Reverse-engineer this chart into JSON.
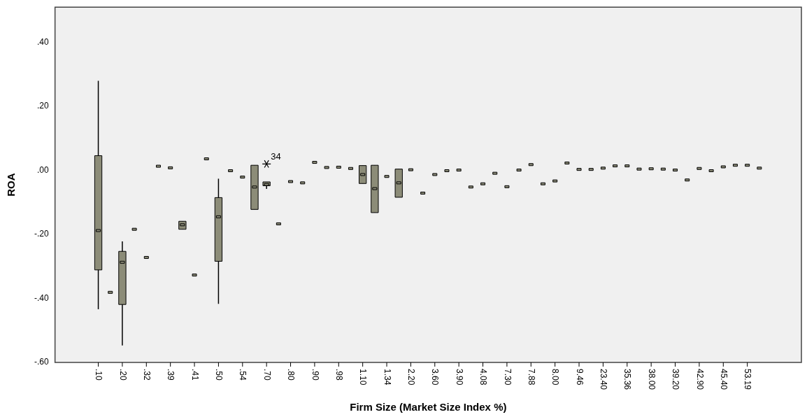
{
  "chart_data": {
    "type": "box",
    "xlabel": "Firm Size (Market Size Index %)",
    "ylabel": "ROA",
    "categories": [
      ".10",
      null,
      ".20",
      null,
      ".32",
      null,
      ".39",
      null,
      ".41",
      null,
      ".50",
      null,
      ".54",
      null,
      ".70",
      null,
      ".80",
      null,
      ".90",
      null,
      ".98",
      null,
      "1.10",
      null,
      "1.34",
      null,
      "2.20",
      null,
      "3.60",
      null,
      "3.90",
      null,
      "4.08",
      null,
      "7.30",
      null,
      "7.88",
      null,
      "8.00",
      null,
      "9.46",
      null,
      "23.40",
      null,
      "35.36",
      null,
      "38.00",
      null,
      "39.20",
      null,
      "42.90",
      null,
      "45.40",
      null,
      "53.19",
      null
    ],
    "color": "#8c8c78",
    "marker": "star",
    "boxes": [
      {
        "low": -0.434,
        "q1": -0.311,
        "median": -0.188,
        "q3": 0.046,
        "high": 0.28
      },
      {
        "low": -0.381,
        "q1": -0.381,
        "median": -0.381,
        "q3": -0.381,
        "high": -0.381
      },
      {
        "low": -0.547,
        "q1": -0.419,
        "median": -0.287,
        "q3": -0.253,
        "high": -0.222
      },
      {
        "low": -0.184,
        "q1": -0.184,
        "median": -0.184,
        "q3": -0.184,
        "high": -0.184
      },
      {
        "low": -0.272,
        "q1": -0.272,
        "median": -0.272,
        "q3": -0.272,
        "high": -0.272
      },
      {
        "low": 0.013,
        "q1": 0.013,
        "median": 0.013,
        "q3": 0.013,
        "high": 0.013
      },
      {
        "low": 0.008,
        "q1": 0.008,
        "median": 0.008,
        "q3": 0.008,
        "high": 0.008
      },
      {
        "low": -0.184,
        "q1": -0.184,
        "median": -0.17,
        "q3": -0.159,
        "high": -0.159
      },
      {
        "low": -0.327,
        "q1": -0.327,
        "median": -0.327,
        "q3": -0.327,
        "high": -0.327
      },
      {
        "low": 0.036,
        "q1": 0.036,
        "median": 0.036,
        "q3": 0.036,
        "high": 0.036
      },
      {
        "low": -0.417,
        "q1": -0.284,
        "median": -0.145,
        "q3": -0.085,
        "high": -0.026
      },
      {
        "low": -0.001,
        "q1": -0.001,
        "median": -0.001,
        "q3": -0.001,
        "high": -0.001
      },
      {
        "low": -0.021,
        "q1": -0.021,
        "median": -0.021,
        "q3": -0.021,
        "high": -0.021
      },
      {
        "low": -0.122,
        "q1": -0.122,
        "median": -0.052,
        "q3": 0.016,
        "high": 0.016
      },
      {
        "low": -0.058,
        "q1": -0.048,
        "median": -0.044,
        "q3": -0.036,
        "high": -0.036,
        "outliers": [
          0.02
        ]
      },
      {
        "low": -0.167,
        "q1": -0.167,
        "median": -0.167,
        "q3": -0.167,
        "high": -0.167
      },
      {
        "low": -0.035,
        "q1": -0.035,
        "median": -0.035,
        "q3": -0.035,
        "high": -0.035
      },
      {
        "low": -0.039,
        "q1": -0.039,
        "median": -0.039,
        "q3": -0.039,
        "high": -0.039
      },
      {
        "low": 0.025,
        "q1": 0.025,
        "median": 0.025,
        "q3": 0.025,
        "high": 0.025
      },
      {
        "low": 0.009,
        "q1": 0.009,
        "median": 0.009,
        "q3": 0.009,
        "high": 0.009
      },
      {
        "low": 0.01,
        "q1": 0.01,
        "median": 0.01,
        "q3": 0.01,
        "high": 0.01
      },
      {
        "low": 0.006,
        "q1": 0.006,
        "median": 0.006,
        "q3": 0.006,
        "high": 0.006
      },
      {
        "low": -0.041,
        "q1": -0.041,
        "median": -0.013,
        "q3": 0.015,
        "high": 0.015
      },
      {
        "low": -0.132,
        "q1": -0.132,
        "median": -0.057,
        "q3": 0.016,
        "high": 0.016
      },
      {
        "low": -0.019,
        "q1": -0.019,
        "median": -0.019,
        "q3": -0.019,
        "high": -0.019
      },
      {
        "low": -0.084,
        "q1": -0.084,
        "median": -0.039,
        "q3": 0.004,
        "high": 0.004
      },
      {
        "low": 0.002,
        "q1": 0.002,
        "median": 0.002,
        "q3": 0.002,
        "high": 0.002
      },
      {
        "low": -0.071,
        "q1": -0.071,
        "median": -0.071,
        "q3": -0.071,
        "high": -0.071
      },
      {
        "low": -0.013,
        "q1": -0.013,
        "median": -0.013,
        "q3": -0.013,
        "high": -0.013
      },
      {
        "low": -0.001,
        "q1": -0.001,
        "median": -0.001,
        "q3": -0.001,
        "high": -0.001
      },
      {
        "low": 0.001,
        "q1": 0.001,
        "median": 0.001,
        "q3": 0.001,
        "high": 0.001
      },
      {
        "low": -0.052,
        "q1": -0.052,
        "median": -0.052,
        "q3": -0.052,
        "high": -0.052
      },
      {
        "low": -0.042,
        "q1": -0.042,
        "median": -0.042,
        "q3": -0.042,
        "high": -0.042
      },
      {
        "low": -0.009,
        "q1": -0.009,
        "median": -0.009,
        "q3": -0.009,
        "high": -0.009
      },
      {
        "low": -0.051,
        "q1": -0.051,
        "median": -0.051,
        "q3": -0.051,
        "high": -0.051
      },
      {
        "low": 0.001,
        "q1": 0.001,
        "median": 0.001,
        "q3": 0.001,
        "high": 0.001
      },
      {
        "low": 0.018,
        "q1": 0.018,
        "median": 0.018,
        "q3": 0.018,
        "high": 0.018
      },
      {
        "low": -0.042,
        "q1": -0.042,
        "median": -0.042,
        "q3": -0.042,
        "high": -0.042
      },
      {
        "low": -0.033,
        "q1": -0.033,
        "median": -0.033,
        "q3": -0.033,
        "high": -0.033
      },
      {
        "low": 0.023,
        "q1": 0.023,
        "median": 0.023,
        "q3": 0.023,
        "high": 0.023
      },
      {
        "low": 0.003,
        "q1": 0.003,
        "median": 0.003,
        "q3": 0.003,
        "high": 0.003
      },
      {
        "low": 0.003,
        "q1": 0.003,
        "median": 0.003,
        "q3": 0.003,
        "high": 0.003
      },
      {
        "low": 0.007,
        "q1": 0.007,
        "median": 0.007,
        "q3": 0.007,
        "high": 0.007
      },
      {
        "low": 0.014,
        "q1": 0.014,
        "median": 0.014,
        "q3": 0.014,
        "high": 0.014
      },
      {
        "low": 0.014,
        "q1": 0.014,
        "median": 0.014,
        "q3": 0.014,
        "high": 0.014
      },
      {
        "low": 0.004,
        "q1": 0.004,
        "median": 0.004,
        "q3": 0.004,
        "high": 0.004
      },
      {
        "low": 0.005,
        "q1": 0.005,
        "median": 0.005,
        "q3": 0.005,
        "high": 0.005
      },
      {
        "low": 0.004,
        "q1": 0.004,
        "median": 0.004,
        "q3": 0.004,
        "high": 0.004
      },
      {
        "low": 0.001,
        "q1": 0.001,
        "median": 0.001,
        "q3": 0.001,
        "high": 0.001
      },
      {
        "low": -0.03,
        "q1": -0.03,
        "median": -0.03,
        "q3": -0.03,
        "high": -0.03
      },
      {
        "low": 0.006,
        "q1": 0.006,
        "median": 0.006,
        "q3": 0.006,
        "high": 0.006
      },
      {
        "low": -0.001,
        "q1": -0.001,
        "median": -0.001,
        "q3": -0.001,
        "high": -0.001
      },
      {
        "low": 0.011,
        "q1": 0.011,
        "median": 0.011,
        "q3": 0.011,
        "high": 0.011
      },
      {
        "low": 0.016,
        "q1": 0.016,
        "median": 0.016,
        "q3": 0.016,
        "high": 0.016
      },
      {
        "low": 0.016,
        "q1": 0.016,
        "median": 0.016,
        "q3": 0.016,
        "high": 0.016
      },
      {
        "low": 0.007,
        "q1": 0.007,
        "median": 0.007,
        "q3": 0.007,
        "high": 0.007
      }
    ],
    "annotations": [
      "34"
    ],
    "ylim": [
      -0.6,
      0.51
    ],
    "yticks": [
      {
        "value": 0.4,
        "label": ".40"
      },
      {
        "value": 0.2,
        "label": ".20"
      },
      {
        "value": 0,
        "label": ".00"
      },
      {
        "value": -0.2,
        "label": "-.20"
      },
      {
        "value": -0.4,
        "label": "-.40"
      },
      {
        "value": -0.6,
        "label": "-.60"
      }
    ]
  }
}
